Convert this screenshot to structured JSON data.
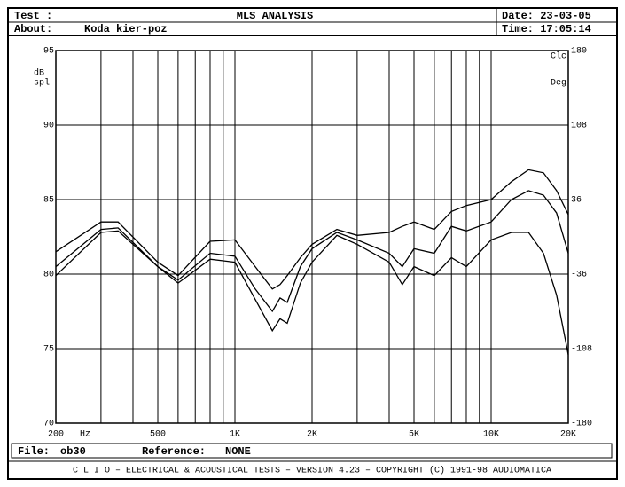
{
  "header": {
    "test_label": "Test :",
    "title": "MLS ANALYSIS",
    "date": "Date: 23-03-05",
    "about_label": "About:",
    "about": "Koda kier-poz",
    "time": "Time: 17:05:14"
  },
  "footer": {
    "file_label": "File:",
    "file": "ob30",
    "reference_label": "Reference:",
    "reference": "NONE",
    "banner": "C L I O  –  ELECTRICAL & ACOUSTICAL TESTS  –  VERSION 4.23  –  COPYRIGHT (C) 1991-98 AUDIOMATICA"
  },
  "chart_data": {
    "type": "line",
    "x": [
      200,
      300,
      350,
      500,
      600,
      800,
      1000,
      1200,
      1400,
      1500,
      1600,
      1800,
      2000,
      2500,
      3000,
      4000,
      4500,
      5000,
      6000,
      7000,
      8000,
      10000,
      12000,
      14000,
      16000,
      18000,
      20000
    ],
    "series": [
      {
        "color": "#000000",
        "values": [
          81.5,
          83.5,
          83.5,
          80.8,
          79.9,
          82.2,
          82.3,
          80.5,
          79.0,
          79.3,
          79.9,
          81.1,
          82.0,
          83.0,
          82.6,
          82.8,
          83.2,
          83.5,
          83.0,
          84.2,
          84.6,
          85.0,
          86.2,
          87.0,
          86.8,
          85.6,
          84.0
        ]
      },
      {
        "color": "#000000",
        "values": [
          80.5,
          83.0,
          83.1,
          80.5,
          79.6,
          81.4,
          81.2,
          79.0,
          77.5,
          78.4,
          78.1,
          80.5,
          81.7,
          82.8,
          82.3,
          81.4,
          80.5,
          81.7,
          81.4,
          83.2,
          82.9,
          83.5,
          85.0,
          85.6,
          85.3,
          84.1,
          81.4
        ]
      },
      {
        "color": "#000000",
        "values": [
          79.9,
          82.8,
          82.9,
          80.5,
          79.4,
          81.0,
          80.8,
          78.3,
          76.2,
          77.0,
          76.7,
          79.4,
          80.8,
          82.6,
          82.0,
          80.8,
          79.3,
          80.5,
          79.9,
          81.1,
          80.5,
          82.3,
          82.8,
          82.8,
          81.4,
          78.6,
          74.6
        ]
      }
    ],
    "xlog": true,
    "xlim": [
      200,
      20000
    ],
    "xticks": [
      200,
      500,
      {
        "value": 1000,
        "label": "1K"
      },
      {
        "value": 2000,
        "label": "2K"
      },
      {
        "value": 5000,
        "label": "5K"
      },
      {
        "value": 10000,
        "label": "10K"
      },
      {
        "value": 20000,
        "label": "20K"
      }
    ],
    "xgrid": [
      300,
      400,
      600,
      700,
      800,
      900,
      3000,
      4000,
      6000,
      7000,
      8000,
      9000
    ],
    "xunit": "Hz",
    "ylim": [
      70,
      95
    ],
    "yticks": [
      70,
      75,
      80,
      85,
      90,
      95
    ],
    "ylabel": [
      "dB",
      "spl"
    ],
    "y2lim": [
      -180,
      180
    ],
    "y2ticks": [
      -180,
      -108,
      -36,
      36,
      108,
      180
    ],
    "y2label": [
      "Clc",
      "Deg"
    ],
    "grid": true
  }
}
